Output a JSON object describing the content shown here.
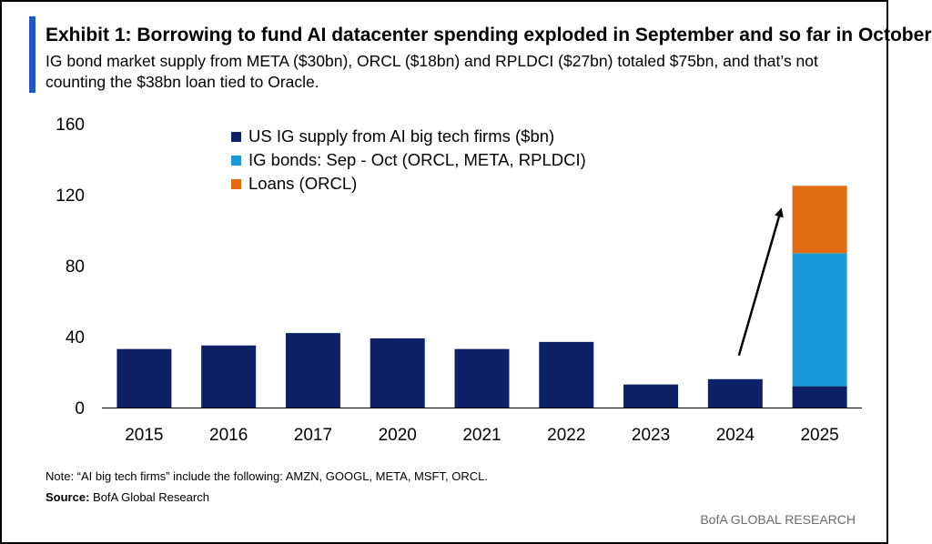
{
  "header": {
    "title": "Exhibit 1:  Borrowing to fund AI datacenter spending exploded in September and so far in October",
    "subtitle": "IG bond market supply from META ($30bn), ORCL ($18bn) and RPLDCI ($27bn) totaled $75bn, and that’s not counting the $38bn loan tied to Oracle."
  },
  "colors": {
    "accent": "#2457c5",
    "navy": "#0c2166",
    "light_blue": "#1a9ad9",
    "orange": "#e06b10",
    "arrow": "#000000"
  },
  "chart_data": {
    "type": "bar",
    "stacked": true,
    "categories": [
      "2015",
      "2016",
      "2017",
      "2020",
      "2021",
      "2022",
      "2023",
      "2024",
      "2025"
    ],
    "series": [
      {
        "name": "US IG supply from AI big tech firms ($bn)",
        "color": "#0c2166",
        "values": [
          33,
          35,
          42,
          39,
          33,
          37,
          13,
          16,
          12
        ]
      },
      {
        "name": "IG bonds: Sep - Oct (ORCL, META, RPLDCI)",
        "color": "#1a9ad9",
        "values": [
          0,
          0,
          0,
          0,
          0,
          0,
          0,
          0,
          75
        ]
      },
      {
        "name": "Loans (ORCL)",
        "color": "#e06b10",
        "values": [
          0,
          0,
          0,
          0,
          0,
          0,
          0,
          0,
          38
        ]
      }
    ],
    "yticks": [
      "0",
      "40",
      "80",
      "120",
      "160"
    ],
    "ylim": [
      0,
      160
    ],
    "grid": false,
    "legend_position": "top-left",
    "annotation": "arrow rising from 2024 bar toward 2025 stacked bar"
  },
  "footer": {
    "note": "Note: “AI big tech firms” include the following: AMZN, GOOGL, META, MSFT, ORCL.",
    "source_label": "Source:",
    "source_text": " BofA Global Research",
    "brand": "BofA GLOBAL RESEARCH"
  }
}
